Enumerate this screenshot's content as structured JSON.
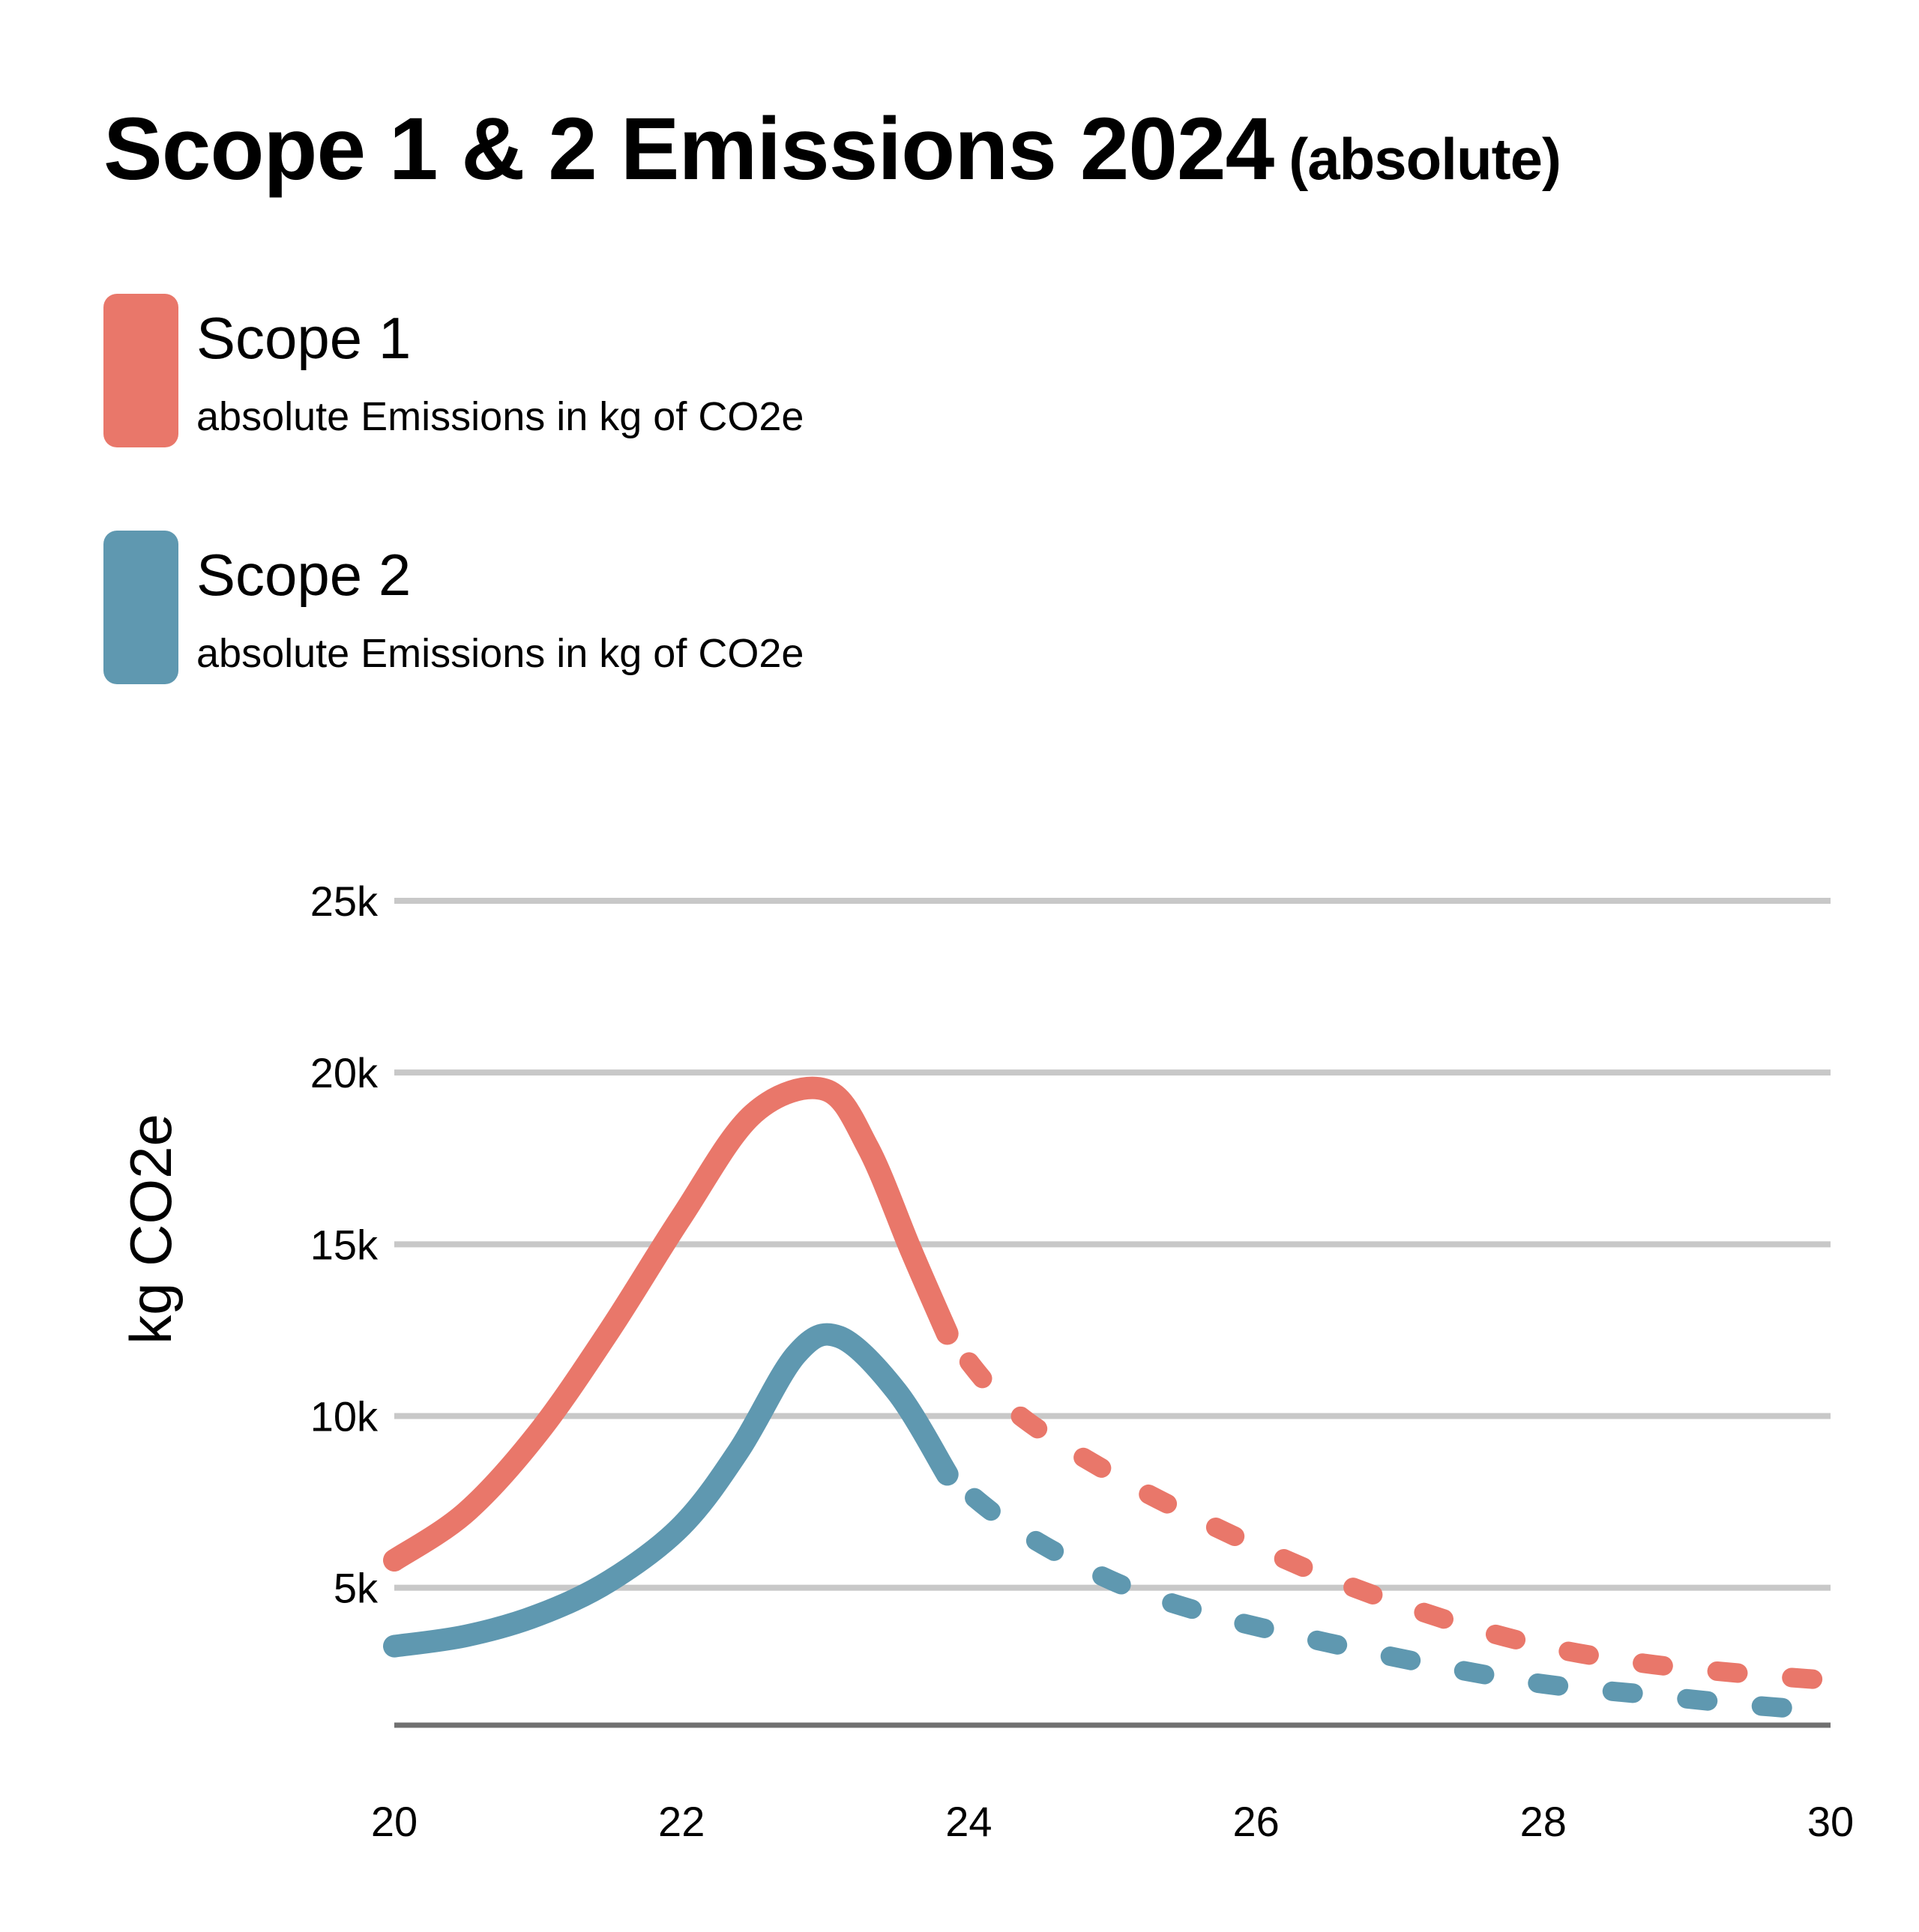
{
  "header": {
    "title": "Scope 1 & 2  Emissions 2024",
    "title_suffix": "(absolute)"
  },
  "legend": [
    {
      "name": "Scope 1",
      "description": "absolute Emissions in kg of CO2e",
      "color": "#E9776A"
    },
    {
      "name": "Scope 2",
      "description": "absolute Emissions in kg of CO2e",
      "color": "#5F98B0"
    }
  ],
  "chart_data": {
    "type": "line",
    "title": "Scope 1 & 2  Emissions 2024 (absolute)",
    "xlabel": "",
    "ylabel": "kg CO2e",
    "xlim": [
      20,
      30
    ],
    "ylim": [
      1000,
      25000
    ],
    "x_ticks": [
      20,
      22,
      24,
      26,
      28,
      30
    ],
    "x_tick_labels": [
      "20",
      "22",
      "24",
      "26",
      "28",
      "30"
    ],
    "y_ticks": [
      5000,
      10000,
      15000,
      20000,
      25000
    ],
    "y_tick_labels": [
      "5k",
      "10k",
      "15k",
      "20k",
      "25k"
    ],
    "grid": true,
    "legend_position": "top-left",
    "series": [
      {
        "name": "Scope 1",
        "color": "#E9776A",
        "actual": {
          "x": [
            20.0,
            20.5,
            21.0,
            21.5,
            22.0,
            22.5,
            23.0,
            23.3,
            23.6,
            23.85
          ],
          "y": [
            5800,
            7200,
            9500,
            12500,
            15800,
            18800,
            19500,
            17800,
            14800,
            12400
          ]
        },
        "projected": {
          "x": [
            23.85,
            24.3,
            25.0,
            25.7,
            26.5,
            27.3,
            28.0,
            28.7,
            29.4,
            30.0
          ],
          "y": [
            12400,
            10200,
            8300,
            6800,
            5300,
            4100,
            3300,
            2800,
            2500,
            2300
          ]
        }
      },
      {
        "name": "Scope 2",
        "color": "#5F98B0",
        "actual": {
          "x": [
            20.0,
            20.5,
            21.0,
            21.5,
            22.0,
            22.4,
            22.8,
            23.1,
            23.5,
            23.85
          ],
          "y": [
            3300,
            3600,
            4200,
            5200,
            6800,
            9000,
            11800,
            12300,
            10700,
            8300
          ]
        },
        "projected": {
          "x": [
            23.85,
            24.3,
            25.0,
            25.7,
            26.5,
            27.3,
            28.0,
            28.7,
            29.4,
            30.0
          ],
          "y": [
            8300,
            6800,
            5200,
            4200,
            3400,
            2700,
            2200,
            1900,
            1600,
            1400
          ]
        }
      }
    ]
  }
}
